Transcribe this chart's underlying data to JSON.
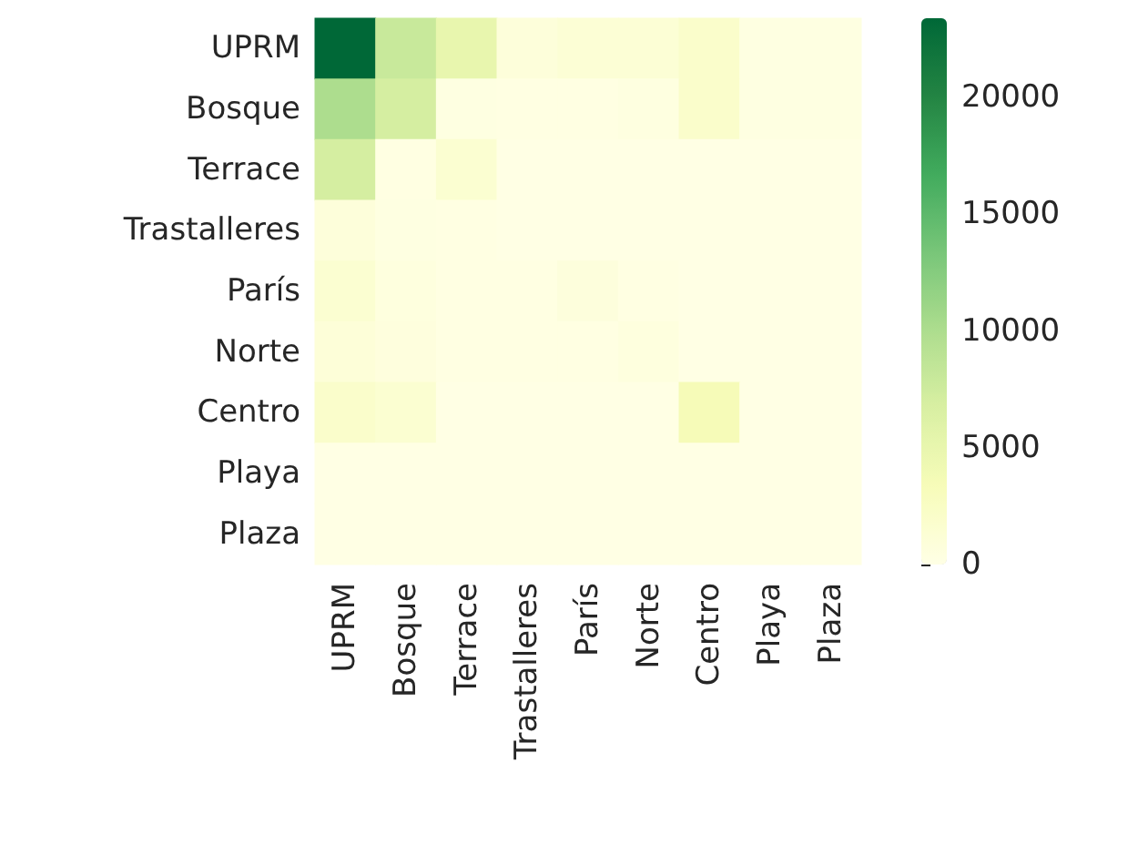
{
  "chart_data": {
    "type": "heatmap",
    "categories": [
      "UPRM",
      "Bosque",
      "Terrace",
      "Trastalleres",
      "París",
      "Norte",
      "Centro",
      "Playa",
      "Plaza"
    ],
    "y_categories": [
      "UPRM",
      "Bosque",
      "Terrace",
      "Trastalleres",
      "París",
      "Norte",
      "Centro",
      "Playa",
      "Plaza"
    ],
    "cells": [
      [
        23400,
        8000,
        5000,
        800,
        1200,
        1200,
        2000,
        300,
        300
      ],
      [
        10000,
        7000,
        300,
        200,
        200,
        400,
        2000,
        300,
        300
      ],
      [
        7000,
        200,
        1500,
        100,
        100,
        100,
        100,
        100,
        100
      ],
      [
        800,
        300,
        200,
        100,
        100,
        100,
        100,
        100,
        100
      ],
      [
        1500,
        500,
        200,
        200,
        700,
        200,
        100,
        100,
        100
      ],
      [
        1000,
        600,
        200,
        200,
        200,
        500,
        100,
        100,
        100
      ],
      [
        2000,
        1500,
        100,
        100,
        100,
        100,
        3500,
        100,
        100
      ],
      [
        100,
        100,
        100,
        100,
        100,
        100,
        100,
        100,
        100
      ],
      [
        100,
        100,
        100,
        100,
        100,
        100,
        100,
        100,
        100
      ]
    ],
    "clim": [
      0,
      23400
    ],
    "cticks": [
      0,
      5000,
      10000,
      15000,
      20000
    ]
  }
}
